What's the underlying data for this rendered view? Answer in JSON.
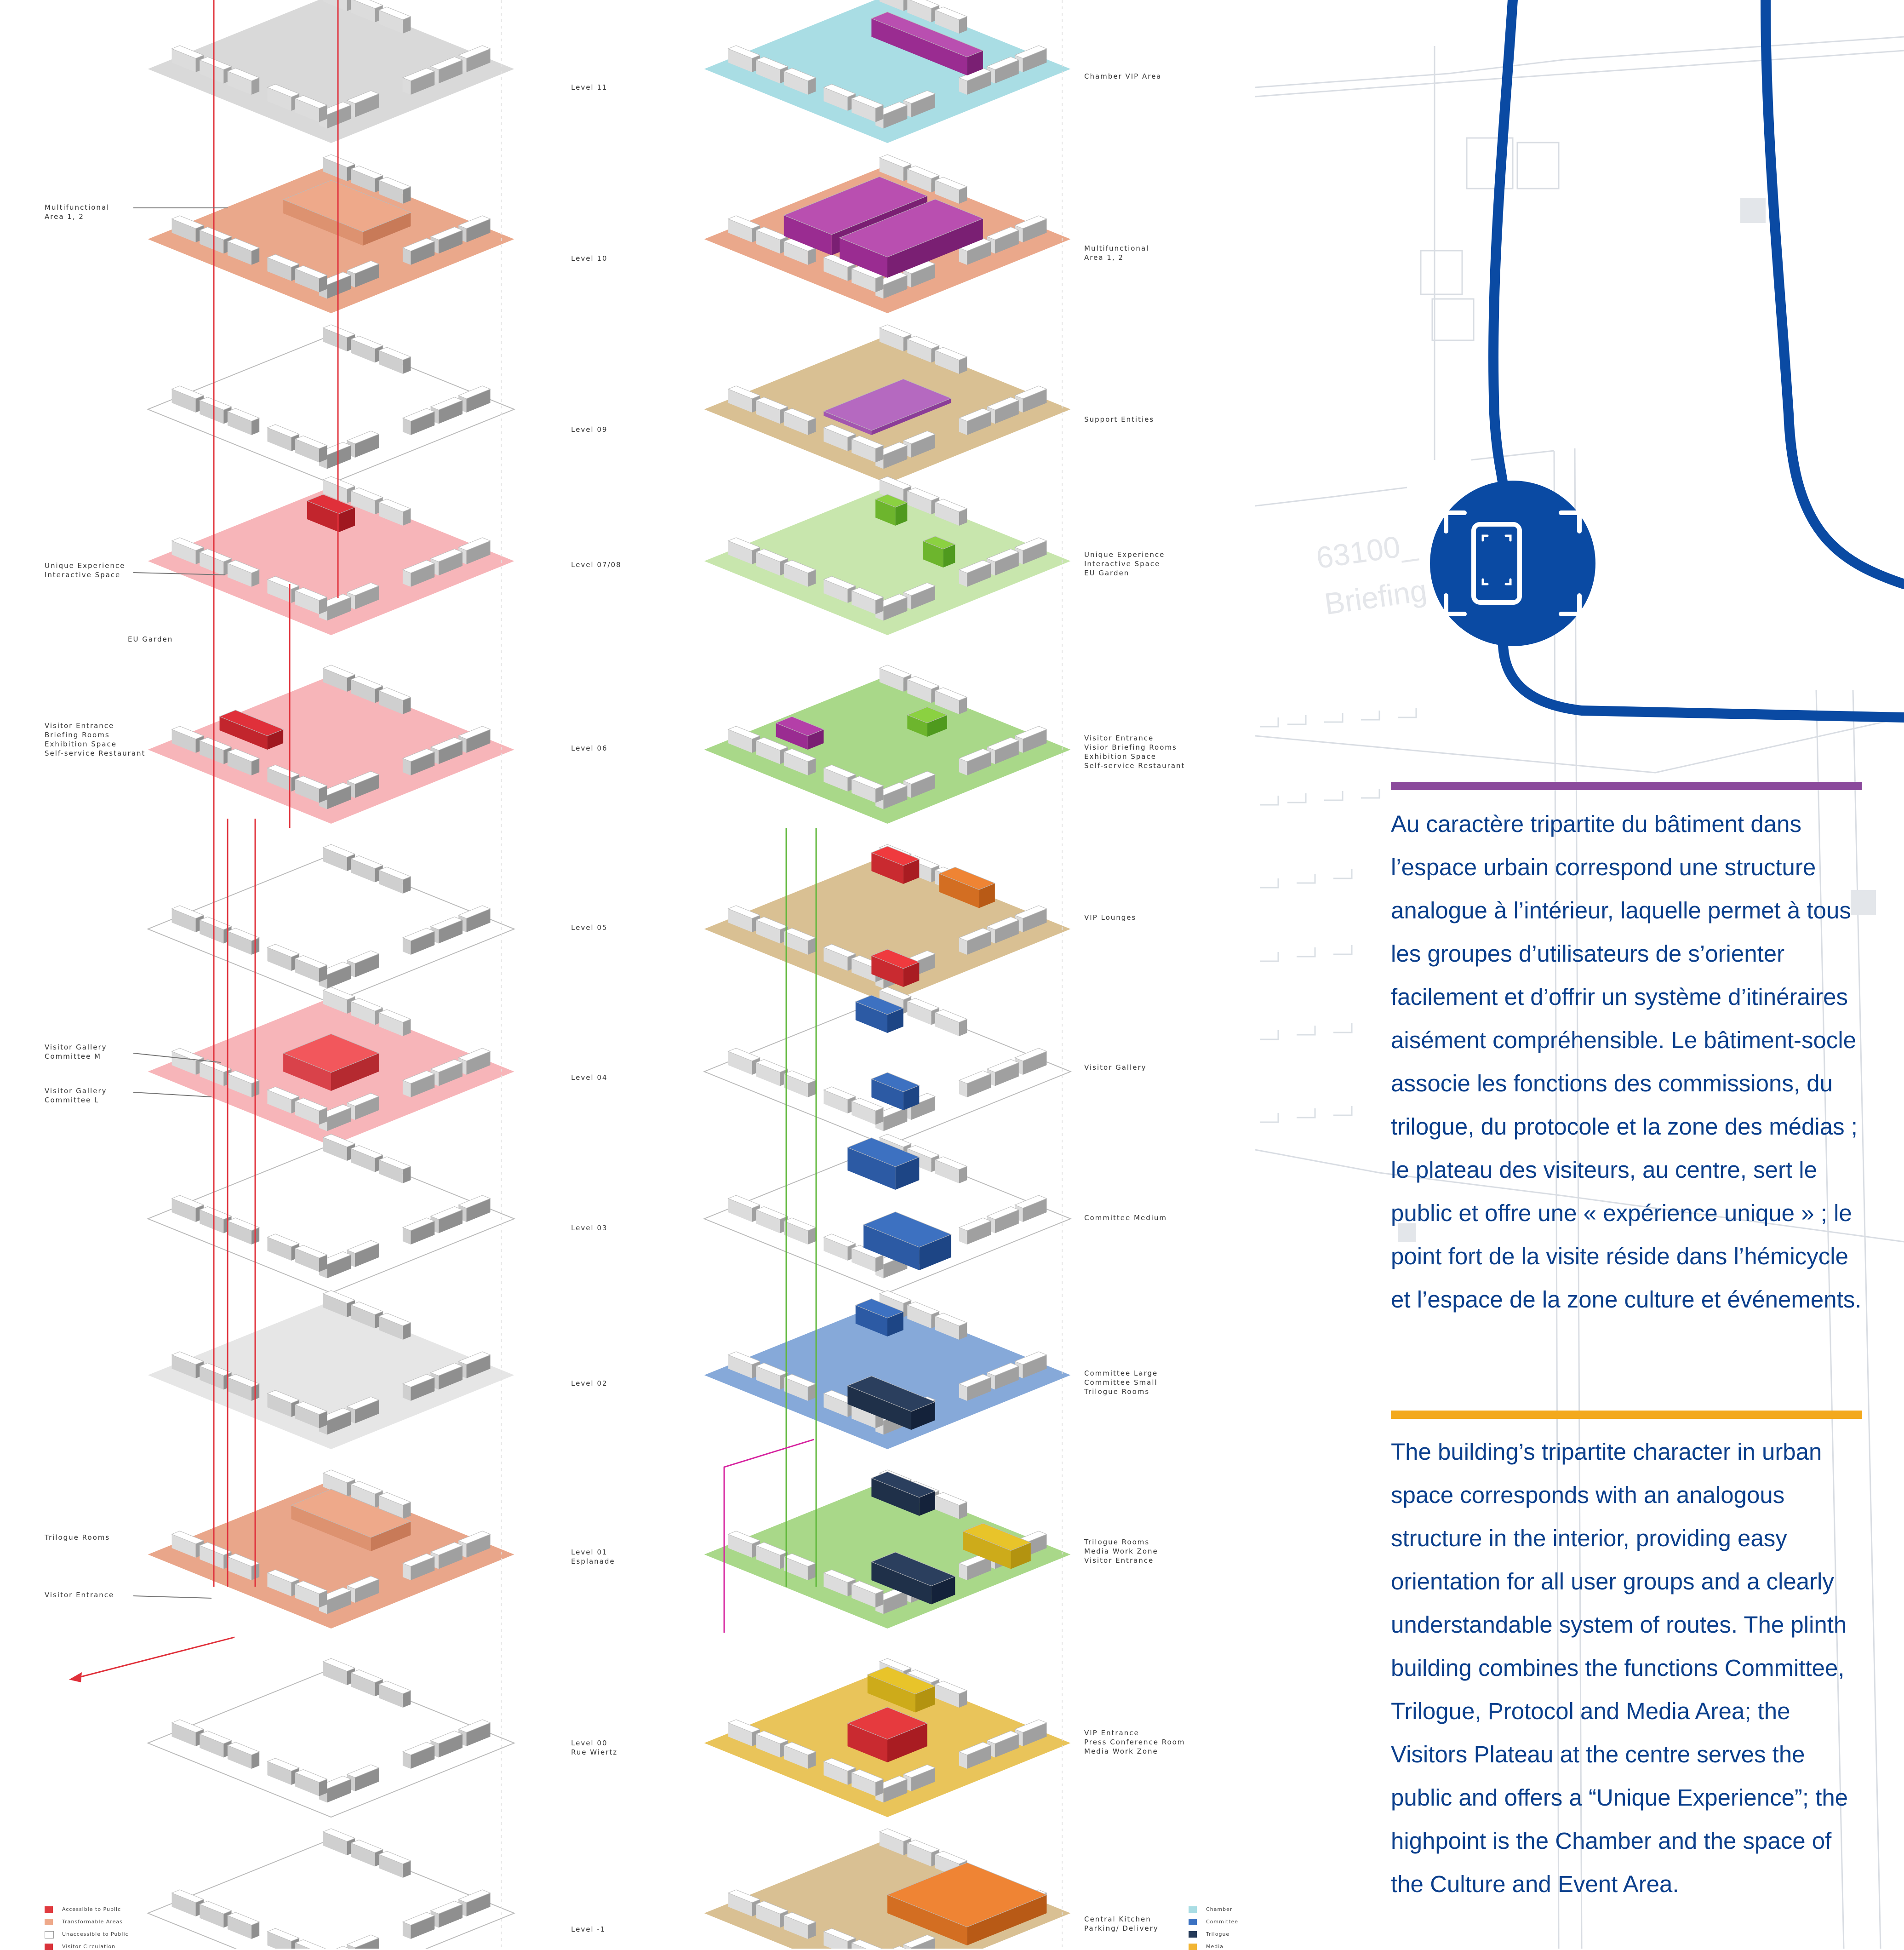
{
  "left_labels": [
    {
      "id": "multifunctional-area",
      "text": "Multifunctional\nArea 1, 2"
    },
    {
      "id": "unique-experience",
      "text": "Unique Experience\nInteractive Space"
    },
    {
      "id": "eu-garden",
      "text": "EU Garden"
    },
    {
      "id": "visitor-entrance-group",
      "text": "Visitor Entrance\nBriefing Rooms\nExhibition Space\nSelf-service Restaurant"
    },
    {
      "id": "visitor-gallery-m",
      "text": "Visitor Gallery\nCommittee M"
    },
    {
      "id": "visitor-gallery-l",
      "text": "Visitor Gallery\nCommittee L"
    },
    {
      "id": "trilogue-rooms",
      "text": "Trilogue Rooms"
    },
    {
      "id": "visitor-entrance",
      "text": "Visitor Entrance"
    }
  ],
  "levels": [
    {
      "name": "Level 11",
      "function": "Chamber VIP Area"
    },
    {
      "name": "Level 10",
      "function": "Multifunctional\nArea 1, 2"
    },
    {
      "name": "Level 09",
      "function": "Support Entities"
    },
    {
      "name": "Level 07/08",
      "function": "Unique Experience\nInteractive Space\nEU Garden"
    },
    {
      "name": "Level 06",
      "function": "Visitor Entrance\nVisior Briefing Rooms\nExhibition Space\nSelf-service Restaurant"
    },
    {
      "name": "Level 05",
      "function": "VIP Lounges"
    },
    {
      "name": "Level 04",
      "function": "Visitor Gallery"
    },
    {
      "name": "Level 03",
      "function": "Committee Medium"
    },
    {
      "name": "Level 02",
      "function": "Committee Large\nCommittee Small\nTrilogue Rooms"
    },
    {
      "name": "Level 01\nEsplanade",
      "function": "Trilogue Rooms\nMedia Work Zone\nVisitor Entrance"
    },
    {
      "name": "Level 00\nRue Wiertz",
      "function": "VIP Entrance\nPress Conference Room\nMedia Work Zone"
    },
    {
      "name": "Level -1",
      "function": "Central Kitchen\nParking/ Delivery"
    }
  ],
  "legend_left": [
    {
      "label": "Accessible to Public",
      "color": "#e03a3e"
    },
    {
      "label": "Transformable Areas",
      "color": "#eea98a"
    },
    {
      "label": "Unaccessible to Public",
      "color": "#ffffff"
    },
    {
      "label": "Visitor Circulation",
      "color": "#d9323a"
    }
  ],
  "legend_right": [
    {
      "label": "Chamber",
      "color": "#a9dde4"
    },
    {
      "label": "Committee",
      "color": "#3c72c2"
    },
    {
      "label": "Trilogue",
      "color": "#253b5a"
    },
    {
      "label": "Media",
      "color": "#f2b533"
    }
  ],
  "map_text": {
    "room_number": "63100_",
    "room_name": "Briefing"
  },
  "colors": {
    "text_blue": "#0b3f8c",
    "rule_purple": "#8b4a9c",
    "rule_yellow": "#f3a91d",
    "route_blue": "#0a4aa3"
  },
  "paragraph_fr": "Au caractère tripartite du bâtiment dans l’espace urbain correspond une structure analogue à l’intérieur, laquelle permet à tous les groupes d’utilisateurs de s’orienter facilement et d’offrir un système d’itinéraires aisément compréhensible. Le bâtiment-socle associe les fonctions des commissions, du trilogue, du protocole et la zone des médias ; le plateau des visiteurs, au centre, sert le public et offre une « expérience unique » ; le point fort de la visite réside dans l’hémicycle et l’espace de la zone culture et événements.",
  "paragraph_en": "The building’s tripartite character in urban space corresponds with an analogous structure in the interior, providing easy orientation for all user groups and a clearly understandable system of routes. The plinth building combines the functions Committee, Trilogue, Protocol and Media Area; the Visitors Plateau at the centre serves the public and offers a “Unique Experience”; the highpoint is the Chamber and the space of the Culture and Event Area."
}
